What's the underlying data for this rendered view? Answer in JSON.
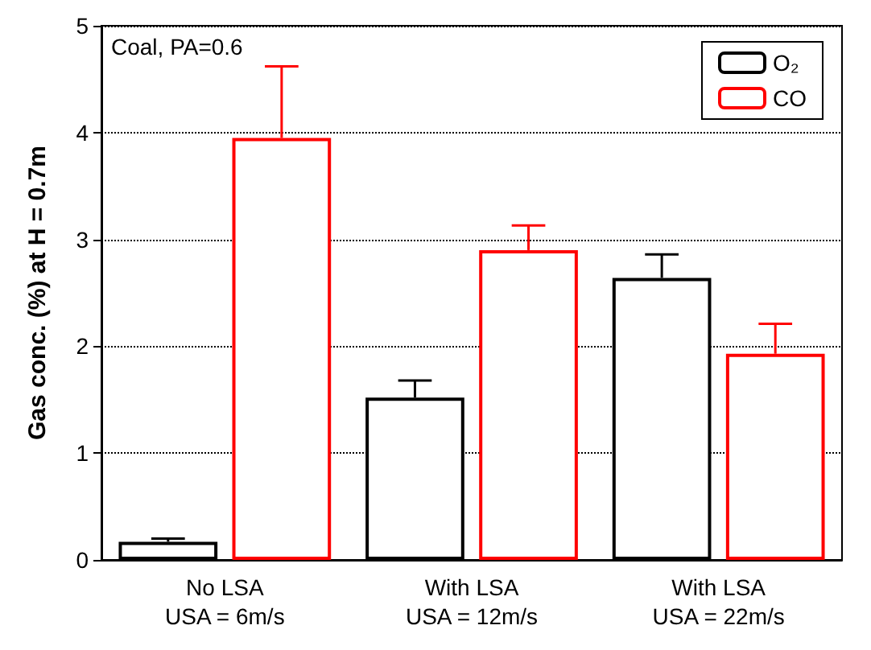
{
  "chart_data": {
    "type": "bar",
    "ylabel": "Gas conc. (%) at H = 0.7m",
    "annotations": [
      "Coal, PA=0.6"
    ],
    "categories": [
      "No LSA\nUSA = 6m/s",
      "With LSA\nUSA = 12m/s",
      "With LSA\nUSA = 22m/s"
    ],
    "series": [
      {
        "name": "O₂",
        "color": "#000000",
        "values": [
          0.17,
          1.52,
          2.64
        ],
        "errors": [
          [
            0.17,
            0.2
          ],
          [
            1.52,
            1.68
          ],
          [
            2.64,
            2.86
          ]
        ]
      },
      {
        "name": "CO",
        "color": "#ff0000",
        "values": [
          3.95,
          2.9,
          1.93
        ],
        "errors": [
          [
            3.95,
            4.62
          ],
          [
            2.9,
            3.13
          ],
          [
            1.93,
            2.21
          ]
        ]
      }
    ],
    "ylim": [
      0,
      5
    ],
    "yticks": [
      0,
      1,
      2,
      3,
      4,
      5
    ],
    "grid": "y",
    "legend": "top right"
  }
}
